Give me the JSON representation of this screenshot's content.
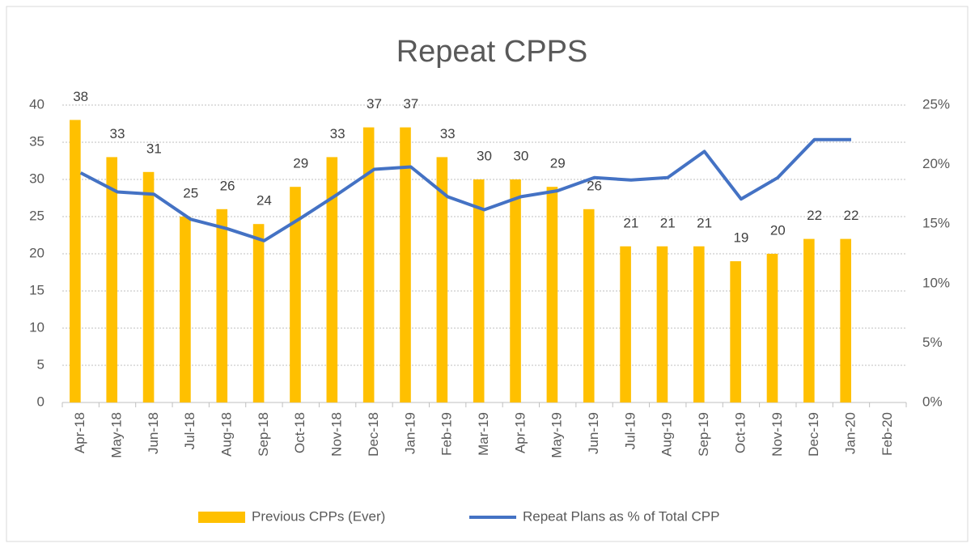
{
  "chart_data": {
    "type": "bar-line",
    "title": "Repeat CPPS",
    "categories": [
      "Apr-18",
      "May-18",
      "Jun-18",
      "Jul-18",
      "Aug-18",
      "Sep-18",
      "Oct-18",
      "Nov-18",
      "Dec-18",
      "Jan-19",
      "Feb-19",
      "Mar-19",
      "Apr-19",
      "May-19",
      "Jun-19",
      "Jul-19",
      "Aug-19",
      "Sep-19",
      "Oct-19",
      "Nov-19",
      "Dec-19",
      "Jan-20",
      "Feb-20"
    ],
    "series": [
      {
        "name": "Previous CPPs (Ever)",
        "type": "bar",
        "color": "#ffc000",
        "values": [
          38,
          33,
          31,
          25,
          26,
          24,
          29,
          33,
          37,
          37,
          33,
          30,
          30,
          29,
          26,
          21,
          21,
          21,
          19,
          20,
          22,
          22,
          null
        ]
      },
      {
        "name": "Repeat Plans as % of Total CPP",
        "type": "line",
        "axis": "y2",
        "color": "#4472c4",
        "values": [
          19.3,
          17.7,
          17.5,
          15.4,
          14.6,
          13.6,
          15.5,
          17.5,
          19.6,
          19.8,
          17.3,
          16.2,
          17.3,
          17.8,
          18.9,
          18.7,
          18.9,
          21.1,
          17.1,
          18.9,
          22.1,
          22.1,
          null
        ]
      }
    ],
    "ylim": [
      0,
      40
    ],
    "yticks": [
      0,
      5,
      10,
      15,
      20,
      25,
      30,
      35,
      40
    ],
    "y2lim": [
      0,
      25
    ],
    "y2ticks": [
      {
        "value": 0,
        "label": "0%"
      },
      {
        "value": 5,
        "label": "5%"
      },
      {
        "value": 10,
        "label": "10%"
      },
      {
        "value": 15,
        "label": "15%"
      },
      {
        "value": 20,
        "label": "20%"
      },
      {
        "value": 25,
        "label": "25%"
      }
    ],
    "grid": true,
    "legend": "bottom"
  }
}
